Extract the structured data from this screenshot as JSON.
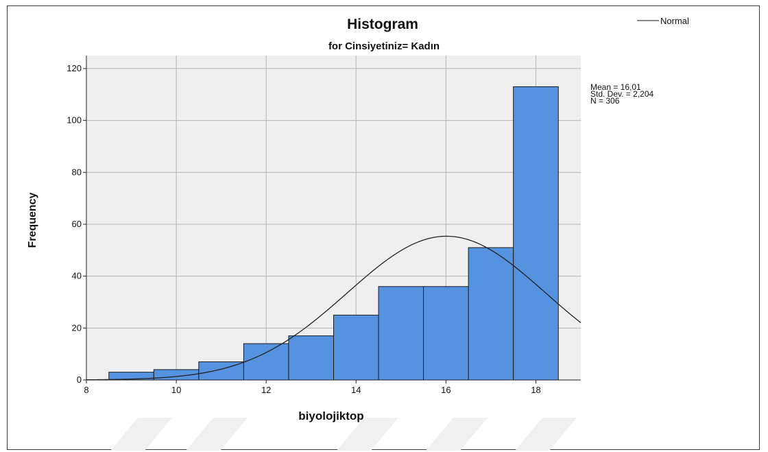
{
  "chart_data": {
    "type": "bar",
    "title": "Histogram",
    "subtitle": "for Cinsiyetiniz= Kadın",
    "xlabel": "biyolojiktop",
    "ylabel": "Frequency",
    "xlim": [
      8,
      19
    ],
    "ylim": [
      0,
      125
    ],
    "x_ticks": [
      "8",
      "10",
      "12",
      "14",
      "16",
      "18"
    ],
    "y_ticks": [
      "0",
      "20",
      "40",
      "60",
      "80",
      "100",
      "120"
    ],
    "bins": [
      {
        "center": 9,
        "value": 3
      },
      {
        "center": 10,
        "value": 4
      },
      {
        "center": 11,
        "value": 7
      },
      {
        "center": 12,
        "value": 14
      },
      {
        "center": 13,
        "value": 17
      },
      {
        "center": 14,
        "value": 25
      },
      {
        "center": 15,
        "value": 36
      },
      {
        "center": 16,
        "value": 36
      },
      {
        "center": 17,
        "value": 51
      },
      {
        "center": 18,
        "value": 113
      }
    ],
    "bin_width": 1,
    "normal_curve": {
      "mean": 16.01,
      "sd": 2.204,
      "n": 306
    },
    "stats": {
      "mean": "Mean = 16,01",
      "std_dev": "Std. Dev. = 2,204",
      "n": "N = 306"
    },
    "legend": [
      {
        "name": "Normal",
        "color": "#888888"
      }
    ],
    "legend_position": "top-right",
    "grid": true,
    "colors": {
      "bar_fill": "#5592e0",
      "bar_stroke": "#1a1a1a",
      "plot_bg": "#efefef",
      "grid": "#b3b3b3",
      "curve": "#222222"
    }
  }
}
